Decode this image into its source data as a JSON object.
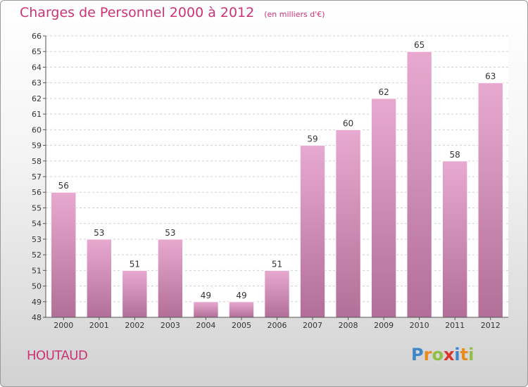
{
  "title": "Charges de Personnel 2000 à 2012",
  "subtitle": "(en milliers d'€)",
  "commune": "HOUTAUD",
  "logo": {
    "letters": [
      "P",
      "r",
      "o",
      "x",
      "i",
      "t",
      "i"
    ],
    "colors": [
      "#3f86c8",
      "#e88c1e",
      "#8fc043",
      "#d9342b",
      "#3f86c8",
      "#e88c1e",
      "#8fc043"
    ]
  },
  "colors": {
    "title": "#cc3377",
    "bar_top": "#e8a9d0",
    "bar_bottom": "#b26f98"
  },
  "chart_data": {
    "type": "bar",
    "categories": [
      "2000",
      "2001",
      "2002",
      "2003",
      "2004",
      "2005",
      "2006",
      "2007",
      "2008",
      "2009",
      "2010",
      "2011",
      "2012"
    ],
    "values": [
      56,
      53,
      51,
      53,
      49,
      49,
      51,
      59,
      60,
      62,
      65,
      58,
      63
    ],
    "ylim": [
      48,
      66
    ],
    "yticks": [
      48,
      49,
      50,
      51,
      52,
      53,
      54,
      55,
      56,
      57,
      58,
      59,
      60,
      61,
      62,
      63,
      64,
      65,
      66
    ],
    "grid": "horizontal-dashed",
    "data_labels": true
  }
}
